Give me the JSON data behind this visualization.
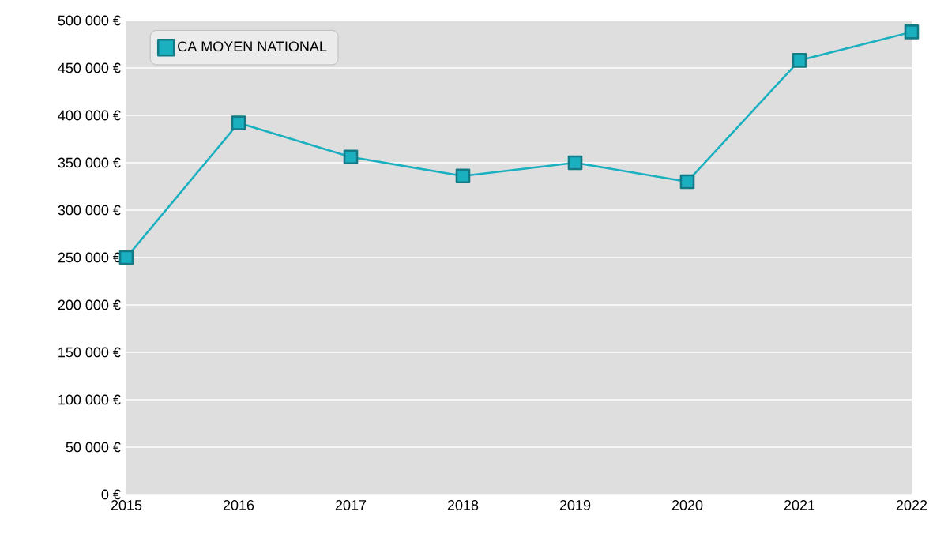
{
  "chart_data": {
    "type": "line",
    "x": [
      2015,
      2016,
      2017,
      2018,
      2019,
      2020,
      2021,
      2022
    ],
    "series": [
      {
        "name": "CA MOYEN NATIONAL",
        "color": "#1ab0c0",
        "values": [
          250000,
          392000,
          356000,
          336000,
          350000,
          330000,
          458000,
          488000
        ]
      }
    ],
    "xlim": [
      2015,
      2022
    ],
    "xticks": [
      2015,
      2016,
      2017,
      2018,
      2019,
      2020,
      2021,
      2022
    ],
    "ylim": [
      0,
      500000
    ],
    "yticks": [
      {
        "value": 0,
        "label": "0 €"
      },
      {
        "value": 50000,
        "label": "50 000 €"
      },
      {
        "value": 100000,
        "label": "100 000 €"
      },
      {
        "value": 150000,
        "label": "150 000 €"
      },
      {
        "value": 200000,
        "label": "200 000 €"
      },
      {
        "value": 250000,
        "label": "250 000 €"
      },
      {
        "value": 300000,
        "label": "300 000 €"
      },
      {
        "value": 350000,
        "label": "350 000 €"
      },
      {
        "value": 400000,
        "label": "400 000 €"
      },
      {
        "value": 450000,
        "label": "450 000 €"
      },
      {
        "value": 500000,
        "label": "500 000 €"
      }
    ],
    "grid": "y",
    "legend": "top left",
    "marker": "square",
    "line_style": "solid"
  }
}
